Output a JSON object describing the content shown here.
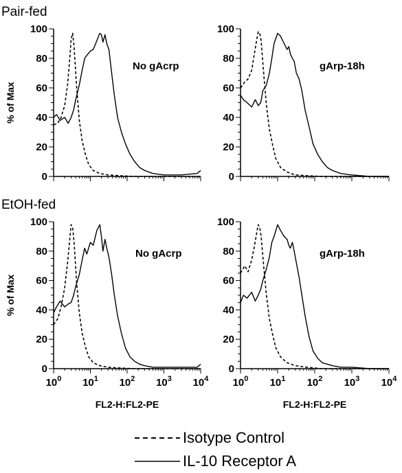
{
  "sections": [
    "Pair-fed",
    "EtOH-fed"
  ],
  "legend": {
    "isotype": "Isotype Control",
    "il10": "IL-10 Receptor A"
  },
  "chart_data": [
    {
      "type": "line",
      "section": "Pair-fed",
      "panel_label": "No gAcrp",
      "ylabel": "% of Max",
      "xlabel": "",
      "x_scale": "log",
      "xlim": [
        1,
        10000
      ],
      "ylim": [
        0,
        100
      ],
      "y_ticks": [
        "0",
        "20",
        "40",
        "60",
        "80",
        "100"
      ],
      "x_ticks": [],
      "series": [
        {
          "name": "Isotype Control",
          "style": "dashed",
          "x": [
            1,
            1.3,
            1.6,
            2,
            2.4,
            2.8,
            3.0,
            3.3,
            3.6,
            4.2,
            5.0,
            6.0,
            7.5,
            9,
            12,
            18,
            30,
            60,
            150,
            1000,
            10000
          ],
          "y": [
            35,
            36,
            40,
            48,
            62,
            82,
            93,
            97,
            88,
            62,
            38,
            24,
            14,
            8,
            4,
            2,
            1,
            0.5,
            0,
            0,
            0
          ]
        },
        {
          "name": "IL-10 Receptor A",
          "style": "solid",
          "x": [
            1,
            1.2,
            1.5,
            2,
            2.5,
            3,
            3.5,
            4,
            5,
            6,
            7,
            8,
            10,
            12,
            15,
            18,
            20,
            22,
            25,
            28,
            32,
            38,
            45,
            55,
            70,
            90,
            120,
            160,
            220,
            300,
            500,
            1000,
            3000,
            8000,
            10000
          ],
          "y": [
            40,
            42,
            38,
            40,
            36,
            40,
            45,
            52,
            62,
            72,
            80,
            82,
            85,
            86,
            92,
            97,
            96,
            91,
            96,
            90,
            86,
            70,
            55,
            40,
            30,
            22,
            15,
            10,
            6,
            4,
            2,
            1,
            1,
            2,
            4
          ]
        }
      ]
    },
    {
      "type": "line",
      "section": "Pair-fed",
      "panel_label": "gArp-18h",
      "ylabel": "",
      "xlabel": "",
      "x_scale": "log",
      "xlim": [
        1,
        10000
      ],
      "ylim": [
        0,
        100
      ],
      "y_ticks": [
        "0",
        "20",
        "40",
        "60",
        "80",
        "100"
      ],
      "x_ticks": [],
      "series": [
        {
          "name": "Isotype Control",
          "style": "dashed",
          "x": [
            1,
            1.3,
            1.6,
            2,
            2.4,
            2.8,
            3.0,
            3.3,
            3.6,
            4.2,
            5.0,
            6.0,
            7.5,
            9,
            12,
            18,
            30,
            60,
            150,
            1000,
            10000
          ],
          "y": [
            60,
            64,
            66,
            72,
            84,
            94,
            98,
            97,
            92,
            70,
            48,
            32,
            20,
            12,
            6,
            3,
            1,
            0.5,
            0,
            0,
            0
          ]
        },
        {
          "name": "IL-10 Receptor A",
          "style": "solid",
          "x": [
            1,
            1.2,
            1.5,
            2,
            2.5,
            3,
            3.5,
            4,
            5,
            6,
            7,
            8,
            10,
            12,
            15,
            18,
            20,
            22,
            25,
            28,
            32,
            38,
            45,
            55,
            70,
            90,
            120,
            160,
            220,
            300,
            500,
            1000,
            3000,
            8000,
            10000
          ],
          "y": [
            55,
            52,
            50,
            47,
            52,
            48,
            50,
            58,
            62,
            70,
            80,
            90,
            97,
            95,
            90,
            86,
            88,
            83,
            80,
            78,
            70,
            66,
            58,
            45,
            34,
            22,
            15,
            10,
            6,
            4,
            2,
            1,
            0,
            0,
            0
          ]
        }
      ]
    },
    {
      "type": "line",
      "section": "EtOH-fed",
      "panel_label": "No gAcrp",
      "ylabel": "% of Max",
      "xlabel": "FL2-H:FL2-PE",
      "x_scale": "log",
      "xlim": [
        1,
        10000
      ],
      "ylim": [
        0,
        100
      ],
      "y_ticks": [
        "0",
        "20",
        "40",
        "60",
        "80",
        "100"
      ],
      "x_ticks": [
        {
          "base": "10",
          "exp": "0"
        },
        {
          "base": "10",
          "exp": "1"
        },
        {
          "base": "10",
          "exp": "2"
        },
        {
          "base": "10",
          "exp": "3"
        },
        {
          "base": "10",
          "exp": "4"
        }
      ],
      "series": [
        {
          "name": "Isotype Control",
          "style": "dashed",
          "x": [
            1,
            1.3,
            1.6,
            2,
            2.4,
            2.8,
            3.0,
            3.3,
            3.6,
            4.2,
            5.0,
            6.0,
            7.5,
            9,
            12,
            18,
            30,
            60,
            150,
            1000,
            10000
          ],
          "y": [
            30,
            34,
            42,
            55,
            72,
            90,
            98,
            96,
            86,
            60,
            38,
            24,
            14,
            8,
            4,
            2,
            1,
            0.5,
            0,
            0,
            0
          ]
        },
        {
          "name": "IL-10 Receptor A",
          "style": "solid",
          "x": [
            1,
            1.2,
            1.5,
            2,
            2.5,
            3,
            3.5,
            4,
            5,
            6,
            7,
            8,
            10,
            12,
            15,
            18,
            20,
            22,
            25,
            28,
            32,
            38,
            45,
            55,
            70,
            90,
            120,
            160,
            220,
            300,
            500,
            1000,
            3000,
            8000,
            10000
          ],
          "y": [
            38,
            42,
            46,
            42,
            44,
            45,
            50,
            56,
            64,
            74,
            82,
            78,
            86,
            84,
            94,
            98,
            90,
            80,
            88,
            82,
            76,
            64,
            50,
            36,
            24,
            14,
            8,
            5,
            3,
            2,
            1,
            1,
            1,
            1,
            3
          ]
        }
      ]
    },
    {
      "type": "line",
      "section": "EtOH-fed",
      "panel_label": "gArp-18h",
      "ylabel": "",
      "xlabel": "FL2-H:FL2-PE",
      "x_scale": "log",
      "xlim": [
        1,
        10000
      ],
      "ylim": [
        0,
        100
      ],
      "y_ticks": [
        "0",
        "20",
        "40",
        "60",
        "80",
        "100"
      ],
      "x_ticks": [
        {
          "base": "10",
          "exp": "0"
        },
        {
          "base": "10",
          "exp": "1"
        },
        {
          "base": "10",
          "exp": "2"
        },
        {
          "base": "10",
          "exp": "3"
        },
        {
          "base": "10",
          "exp": "4"
        }
      ],
      "series": [
        {
          "name": "Isotype Control",
          "style": "dashed",
          "x": [
            1,
            1.3,
            1.6,
            2,
            2.4,
            2.8,
            3.0,
            3.3,
            3.6,
            4.2,
            5.0,
            6.0,
            7.5,
            9,
            12,
            18,
            30,
            60,
            150,
            1000,
            10000
          ],
          "y": [
            65,
            70,
            66,
            74,
            84,
            94,
            98,
            96,
            90,
            70,
            50,
            34,
            22,
            14,
            8,
            4,
            2,
            1,
            0,
            0,
            0
          ]
        },
        {
          "name": "IL-10 Receptor A",
          "style": "solid",
          "x": [
            1,
            1.2,
            1.5,
            2,
            2.5,
            3,
            3.5,
            4,
            5,
            6,
            7,
            8,
            10,
            12,
            15,
            18,
            20,
            22,
            25,
            28,
            32,
            38,
            45,
            55,
            70,
            90,
            120,
            160,
            220,
            300,
            500,
            1000,
            3000,
            8000,
            10000
          ],
          "y": [
            45,
            50,
            48,
            52,
            46,
            50,
            54,
            60,
            68,
            76,
            86,
            90,
            98,
            94,
            90,
            88,
            84,
            82,
            86,
            80,
            72,
            62,
            50,
            36,
            22,
            12,
            7,
            4,
            3,
            2,
            1,
            1,
            0,
            0,
            0
          ]
        }
      ]
    }
  ]
}
